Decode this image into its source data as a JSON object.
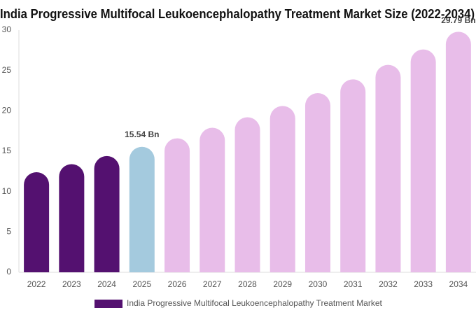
{
  "chart_data": {
    "type": "bar",
    "title": "India Progressive Multifocal Leukoencephalopathy Treatment Market Size (2022-2034)",
    "categories": [
      "2022",
      "2023",
      "2024",
      "2025",
      "2026",
      "2027",
      "2028",
      "2029",
      "2030",
      "2031",
      "2032",
      "2033",
      "2034"
    ],
    "series": [
      {
        "name": "India Progressive Multifocal Leukoencephalopathy Treatment Market",
        "color": "#541170",
        "values": [
          12.4,
          13.4,
          14.4,
          15.54,
          16.6,
          17.9,
          19.2,
          20.6,
          22.2,
          23.9,
          25.7,
          27.6,
          29.79
        ],
        "value_labels": [
          null,
          null,
          null,
          "15.54 Bn",
          null,
          null,
          null,
          null,
          null,
          null,
          null,
          null,
          "29.79 Bn"
        ]
      }
    ],
    "bar_colors": [
      "#541170",
      "#541170",
      "#541170",
      "#a4cade",
      "#e8bde9",
      "#e8bde9",
      "#e8bde9",
      "#e8bde9",
      "#e8bde9",
      "#e8bde9",
      "#e8bde9",
      "#e8bde9",
      "#e8bde9"
    ],
    "ylim": [
      0,
      30
    ],
    "yticks": [
      0,
      5,
      10,
      15,
      20,
      25,
      30
    ],
    "grid": false
  }
}
